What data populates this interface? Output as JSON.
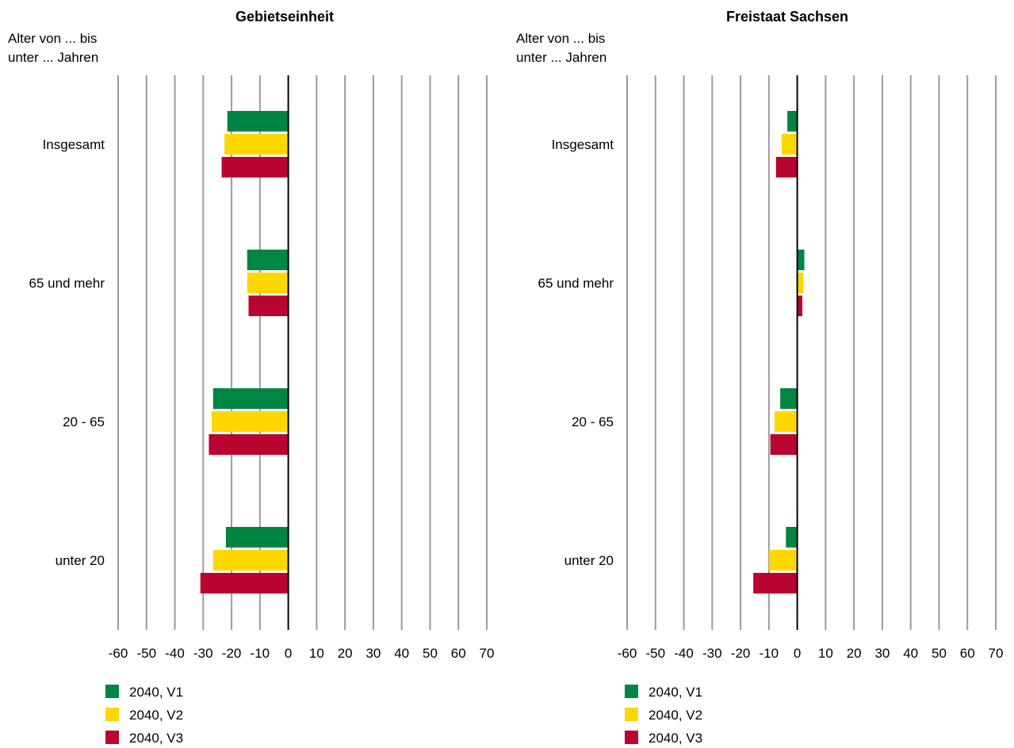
{
  "chart_data": [
    {
      "type": "bar",
      "orientation": "horizontal",
      "title": "Gebietseinheit",
      "ylabel_line1": "Alter von ... bis",
      "ylabel_line2": "unter ... Jahren",
      "categories": [
        "Insgesamt",
        "65 und mehr",
        "20 - 65",
        "unter 20"
      ],
      "xlim": [
        -60,
        70
      ],
      "xticks": [
        "-60",
        "-50",
        "-40",
        "-30",
        "-20",
        "-10",
        "0",
        "10",
        "20",
        "30",
        "40",
        "50",
        "60",
        "70"
      ],
      "grid": true,
      "legend_position": "bottom-left",
      "series": [
        {
          "name": "2040, V1",
          "color": "#008542",
          "values": [
            -21.5,
            -14.5,
            -26.5,
            -22
          ]
        },
        {
          "name": "2040, V2",
          "color": "#ffd700",
          "values": [
            -22.5,
            -14.5,
            -27,
            -26.5
          ]
        },
        {
          "name": "2040, V3",
          "color": "#b9052f",
          "values": [
            -23.5,
            -14,
            -28,
            -31
          ]
        }
      ]
    },
    {
      "type": "bar",
      "orientation": "horizontal",
      "title": "Freistaat Sachsen",
      "ylabel_line1": "Alter von ... bis",
      "ylabel_line2": "unter ... Jahren",
      "categories": [
        "Insgesamt",
        "65 und mehr",
        "20 - 65",
        "unter 20"
      ],
      "xlim": [
        -60,
        70
      ],
      "xticks": [
        "-60",
        "-50",
        "-40",
        "-30",
        "-20",
        "-10",
        "0",
        "10",
        "20",
        "30",
        "40",
        "50",
        "60",
        "70"
      ],
      "grid": true,
      "legend_position": "bottom-left",
      "series": [
        {
          "name": "2040, V1",
          "color": "#008542",
          "values": [
            -3.5,
            2.5,
            -6,
            -4
          ]
        },
        {
          "name": "2040, V2",
          "color": "#ffd700",
          "values": [
            -5.5,
            2.2,
            -8,
            -10
          ]
        },
        {
          "name": "2040, V3",
          "color": "#b9052f",
          "values": [
            -7.5,
            1.8,
            -9.5,
            -15.5
          ]
        }
      ]
    }
  ]
}
